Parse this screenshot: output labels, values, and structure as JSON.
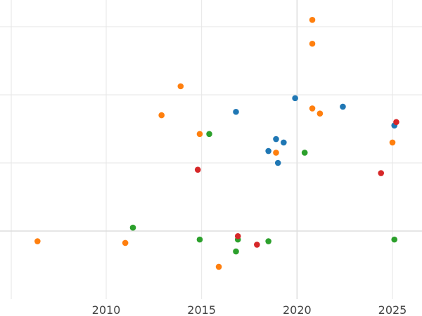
{
  "chart_data": {
    "type": "scatter",
    "title": "",
    "xlabel": "",
    "ylabel": "",
    "grid": true,
    "xlim": [
      2005,
      2026.5
    ],
    "ylim": [
      -0.3,
      1.6
    ],
    "x_ticks": [
      2010,
      2015,
      2020,
      2025
    ],
    "x_tick_labels": [
      "2010",
      "2015",
      "2020",
      "2025"
    ],
    "y_gridlines": [
      0,
      0.4,
      0.8,
      1.2
    ],
    "series": [
      {
        "color": "#1f77b4",
        "points": [
          {
            "x": 2016.8,
            "y": 0.7
          },
          {
            "x": 2018.5,
            "y": 0.47
          },
          {
            "x": 2018.9,
            "y": 0.54
          },
          {
            "x": 2019.0,
            "y": 0.4
          },
          {
            "x": 2019.3,
            "y": 0.52
          },
          {
            "x": 2019.9,
            "y": 0.78
          },
          {
            "x": 2022.4,
            "y": 0.73
          },
          {
            "x": 2025.1,
            "y": 0.62
          }
        ]
      },
      {
        "color": "#ff7f0e",
        "points": [
          {
            "x": 2006.4,
            "y": -0.06
          },
          {
            "x": 2011.0,
            "y": -0.07
          },
          {
            "x": 2012.9,
            "y": 0.68
          },
          {
            "x": 2013.9,
            "y": 0.85
          },
          {
            "x": 2014.9,
            "y": 0.57
          },
          {
            "x": 2015.9,
            "y": -0.21
          },
          {
            "x": 2018.9,
            "y": 0.46
          },
          {
            "x": 2020.8,
            "y": 1.1
          },
          {
            "x": 2020.8,
            "y": 1.24
          },
          {
            "x": 2020.8,
            "y": 0.72
          },
          {
            "x": 2021.2,
            "y": 0.69
          },
          {
            "x": 2025.0,
            "y": 0.52
          }
        ]
      },
      {
        "color": "#2ca02c",
        "points": [
          {
            "x": 2011.4,
            "y": 0.02
          },
          {
            "x": 2014.9,
            "y": -0.05
          },
          {
            "x": 2015.4,
            "y": 0.57
          },
          {
            "x": 2016.8,
            "y": -0.12
          },
          {
            "x": 2016.9,
            "y": -0.05
          },
          {
            "x": 2018.5,
            "y": -0.06
          },
          {
            "x": 2020.4,
            "y": 0.46
          },
          {
            "x": 2025.1,
            "y": -0.05
          }
        ]
      },
      {
        "color": "#d62728",
        "points": [
          {
            "x": 2014.8,
            "y": 0.36
          },
          {
            "x": 2016.9,
            "y": -0.03
          },
          {
            "x": 2017.9,
            "y": -0.08
          },
          {
            "x": 2024.4,
            "y": 0.34
          },
          {
            "x": 2025.2,
            "y": 0.64
          }
        ]
      }
    ]
  }
}
